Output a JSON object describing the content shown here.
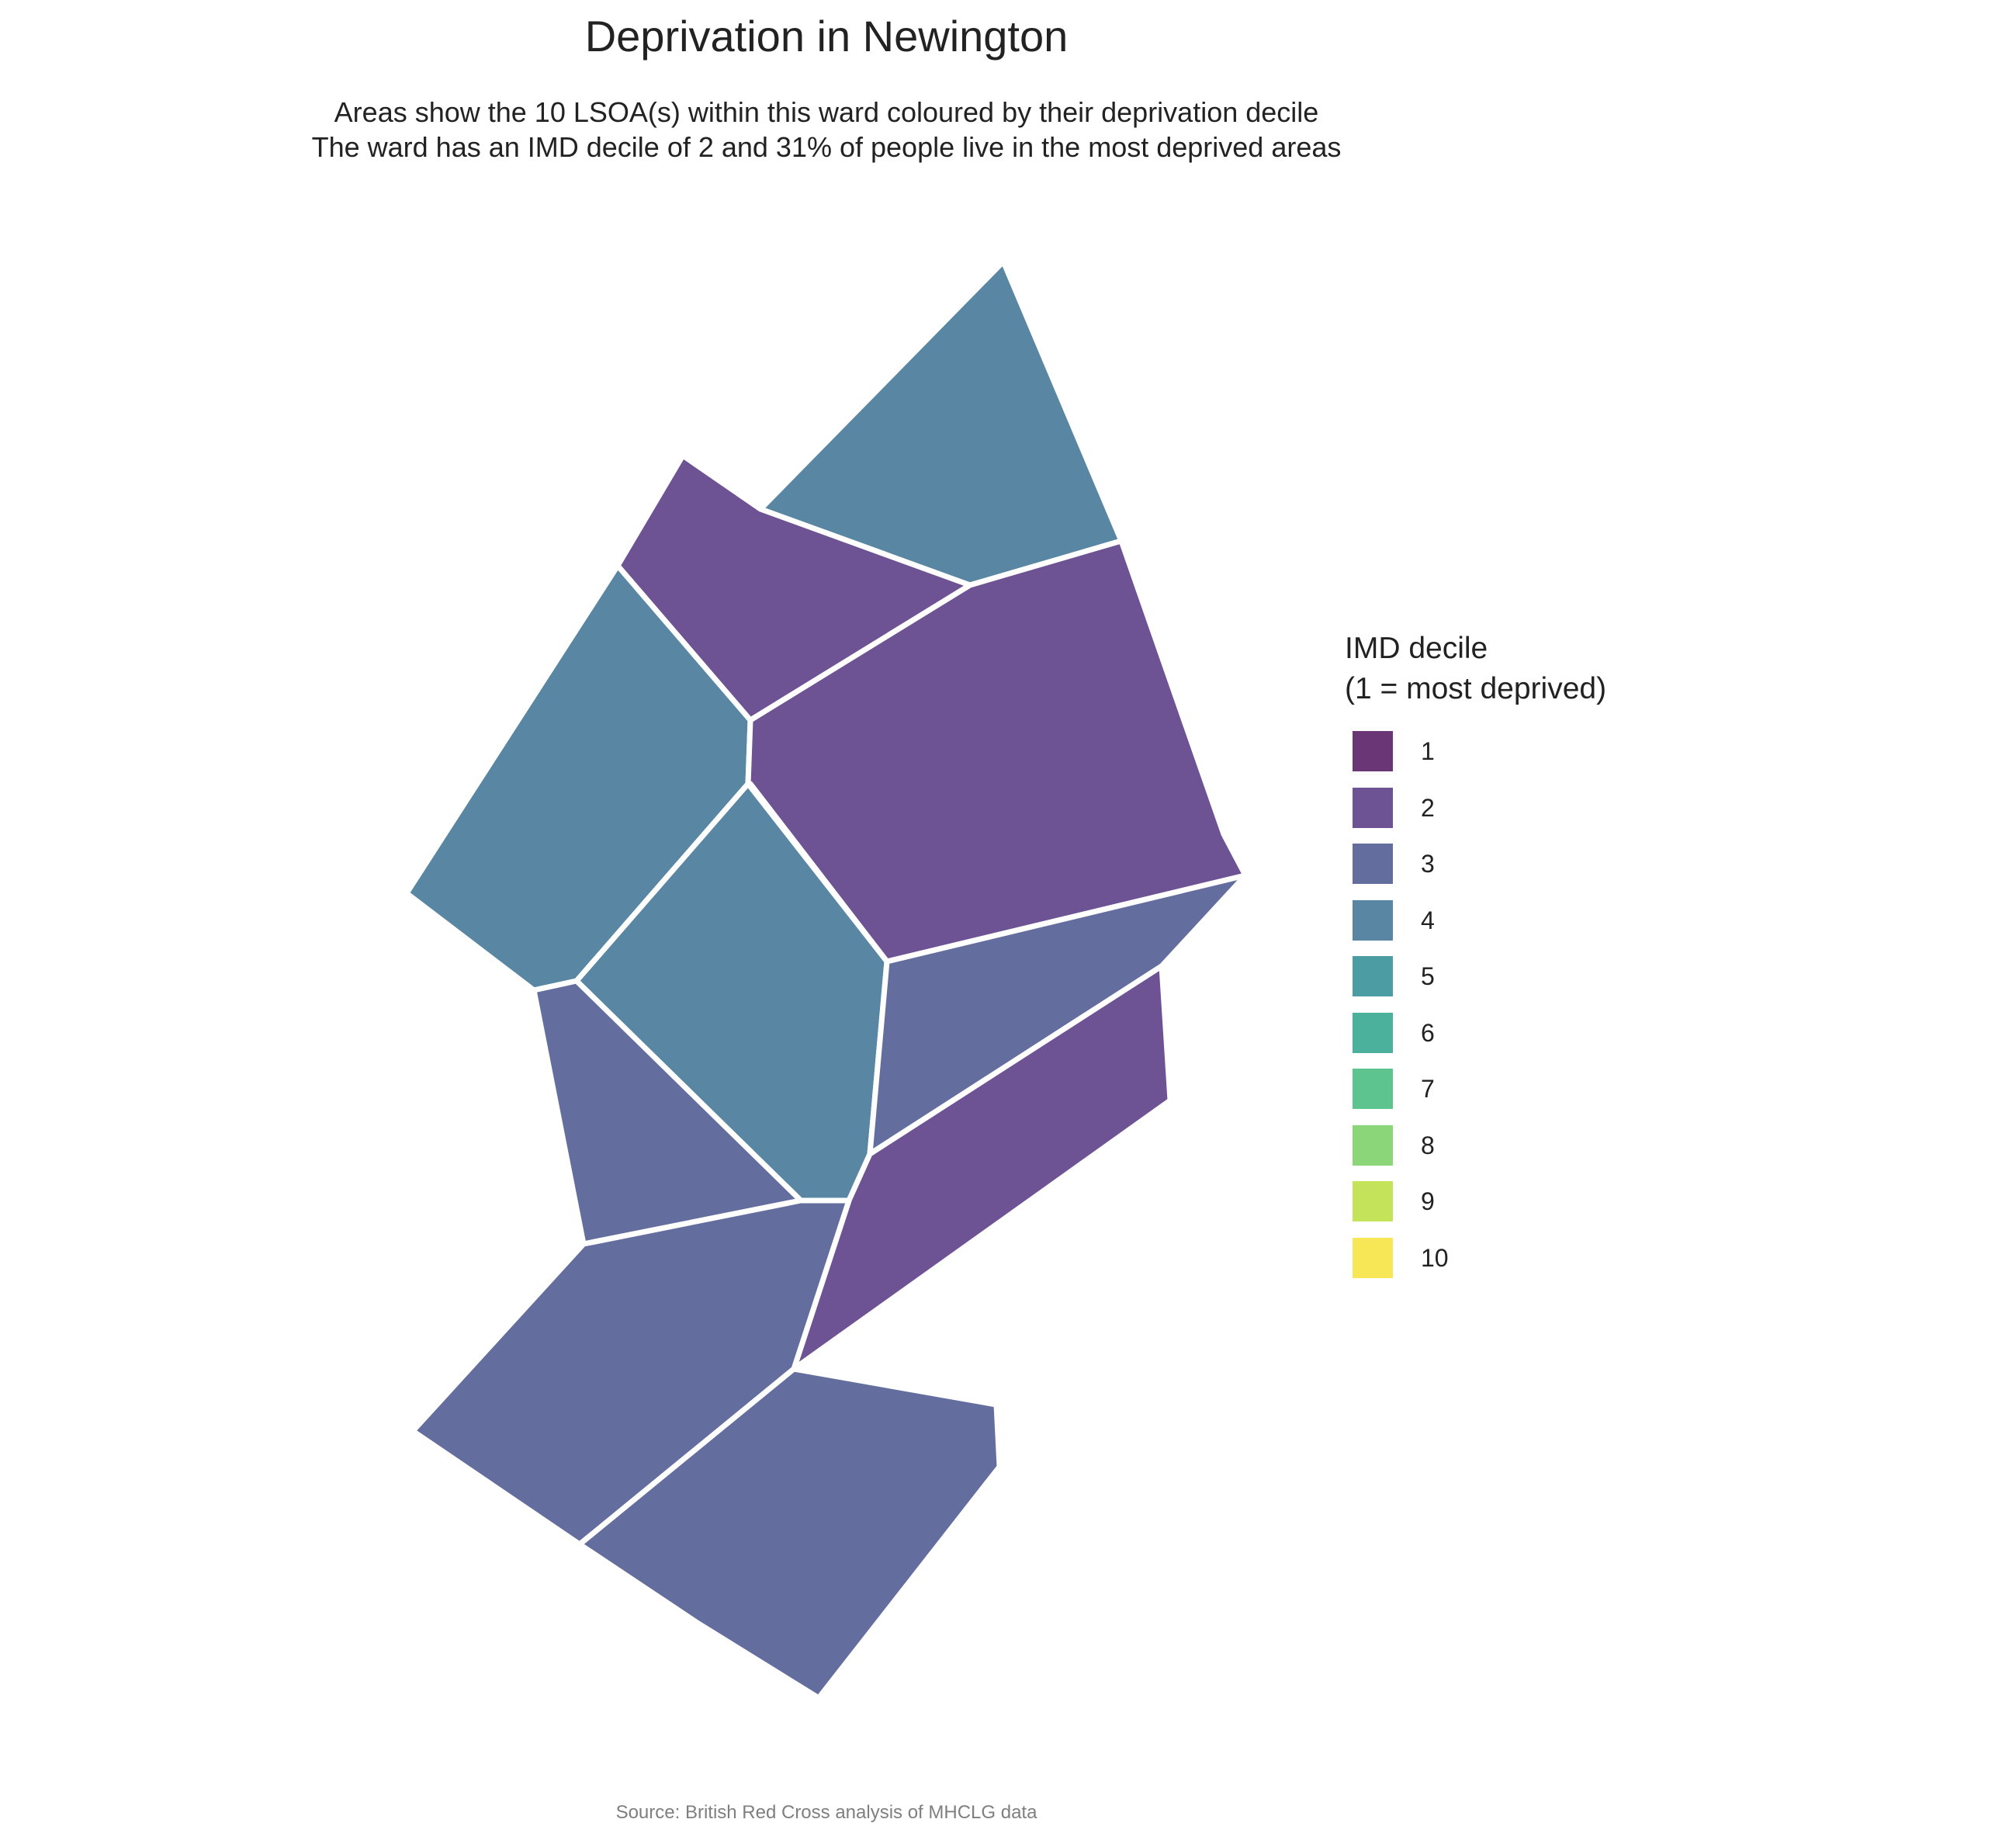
{
  "title": "Deprivation in Newington",
  "subtitle_line1": "Areas show the 10 LSOA(s) within this ward coloured by their deprivation decile",
  "subtitle_line2": "The ward has an IMD decile of 2 and 31% of people live in the most deprived areas",
  "legend": {
    "title_line1": "IMD decile",
    "title_line2": "(1 = most deprived)",
    "items": [
      {
        "label": "1",
        "color": "#6A3676"
      },
      {
        "label": "2",
        "color": "#6D5393"
      },
      {
        "label": "3",
        "color": "#646E9E"
      },
      {
        "label": "4",
        "color": "#5987A3"
      },
      {
        "label": "5",
        "color": "#4C9CA3"
      },
      {
        "label": "6",
        "color": "#4BB09C"
      },
      {
        "label": "7",
        "color": "#5DC48F"
      },
      {
        "label": "8",
        "color": "#8AD678"
      },
      {
        "label": "9",
        "color": "#C5E35A"
      },
      {
        "label": "10",
        "color": "#F7E757"
      }
    ]
  },
  "areas": [
    {
      "name": "lsoa-north",
      "decile": 4
    },
    {
      "name": "lsoa-north-west",
      "decile": 2
    },
    {
      "name": "lsoa-west",
      "decile": 4
    },
    {
      "name": "lsoa-east",
      "decile": 2
    },
    {
      "name": "lsoa-centre",
      "decile": 4
    },
    {
      "name": "lsoa-south-west",
      "decile": 3
    },
    {
      "name": "lsoa-centre-east",
      "decile": 3
    },
    {
      "name": "lsoa-south-east",
      "decile": 2
    },
    {
      "name": "lsoa-south",
      "decile": 3
    },
    {
      "name": "lsoa-far-south",
      "decile": 3
    }
  ],
  "source": "Source: British Red Cross analysis of MHCLG data"
}
